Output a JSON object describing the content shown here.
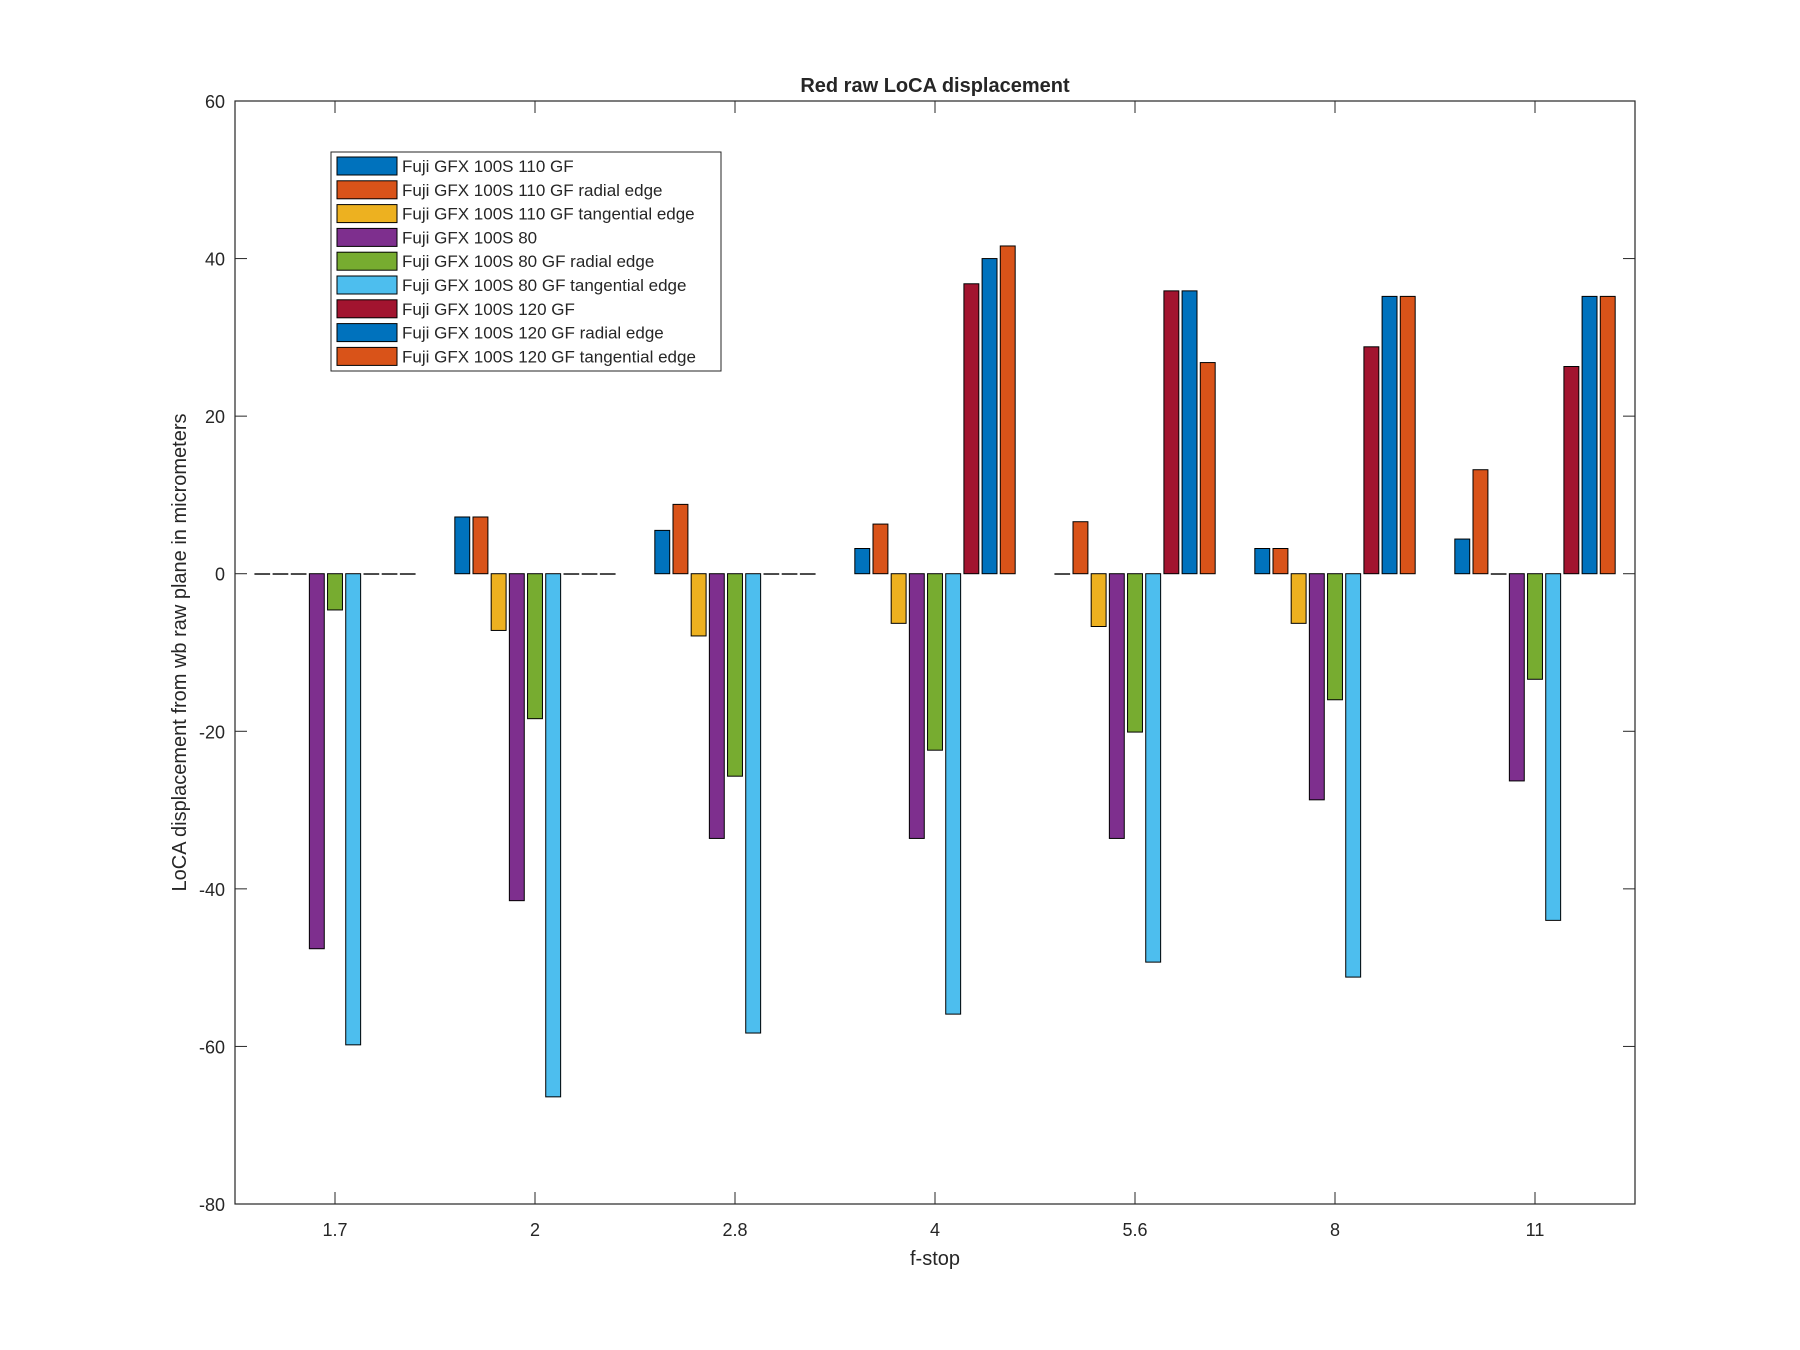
{
  "chart_data": {
    "type": "bar",
    "title": "Red raw  LoCA displacement",
    "xlabel": "f-stop",
    "ylabel": "LoCA displacement from wb raw plane in micrometers",
    "categories": [
      "1.7",
      "2",
      "2.8",
      "4",
      "5.6",
      "8",
      "11"
    ],
    "ylim": [
      -80,
      60
    ],
    "yticks": [
      -80,
      -60,
      -40,
      -20,
      0,
      20,
      40,
      60
    ],
    "grid": false,
    "legend_position": "top-left",
    "series": [
      {
        "name": "Fuji GFX 100S 110 GF",
        "color": "#0072BD",
        "values": [
          0,
          7.2,
          5.5,
          3.2,
          0,
          3.2,
          4.4
        ]
      },
      {
        "name": "Fuji GFX 100S 110 GF radial edge",
        "color": "#D95319",
        "values": [
          0,
          7.2,
          8.8,
          6.3,
          6.6,
          3.2,
          13.2
        ]
      },
      {
        "name": "Fuji GFX 100S 110 GF tangential edge",
        "color": "#EDB120",
        "values": [
          0,
          -7.2,
          -7.9,
          -6.3,
          -6.7,
          -6.3,
          0
        ]
      },
      {
        "name": "Fuji GFX 100S 80",
        "color": "#7E2F8E",
        "values": [
          -47.6,
          -41.5,
          -33.6,
          -33.6,
          -33.6,
          -28.7,
          -26.3
        ]
      },
      {
        "name": "Fuji GFX 100S 80 GF radial edge",
        "color": "#77AC30",
        "values": [
          -4.6,
          -18.4,
          -25.7,
          -22.4,
          -20.1,
          -16.0,
          -13.4
        ]
      },
      {
        "name": "Fuji GFX 100S 80 GF tangential edge",
        "color": "#4DBEEE",
        "values": [
          -59.8,
          -66.4,
          -58.3,
          -55.9,
          -49.3,
          -51.2,
          -44.0
        ]
      },
      {
        "name": "Fuji GFX 100S 120 GF",
        "color": "#A2142F",
        "values": [
          0,
          0,
          0,
          36.8,
          35.9,
          28.8,
          26.3
        ]
      },
      {
        "name": "Fuji GFX 100S 120 GF radial edge",
        "color": "#0072BD",
        "values": [
          0,
          0,
          0,
          40.0,
          35.9,
          35.2,
          35.2
        ]
      },
      {
        "name": "Fuji GFX 100S 120 GF tangential edge",
        "color": "#D95319",
        "values": [
          0,
          0,
          0,
          41.6,
          26.8,
          35.2,
          35.2
        ]
      }
    ]
  }
}
